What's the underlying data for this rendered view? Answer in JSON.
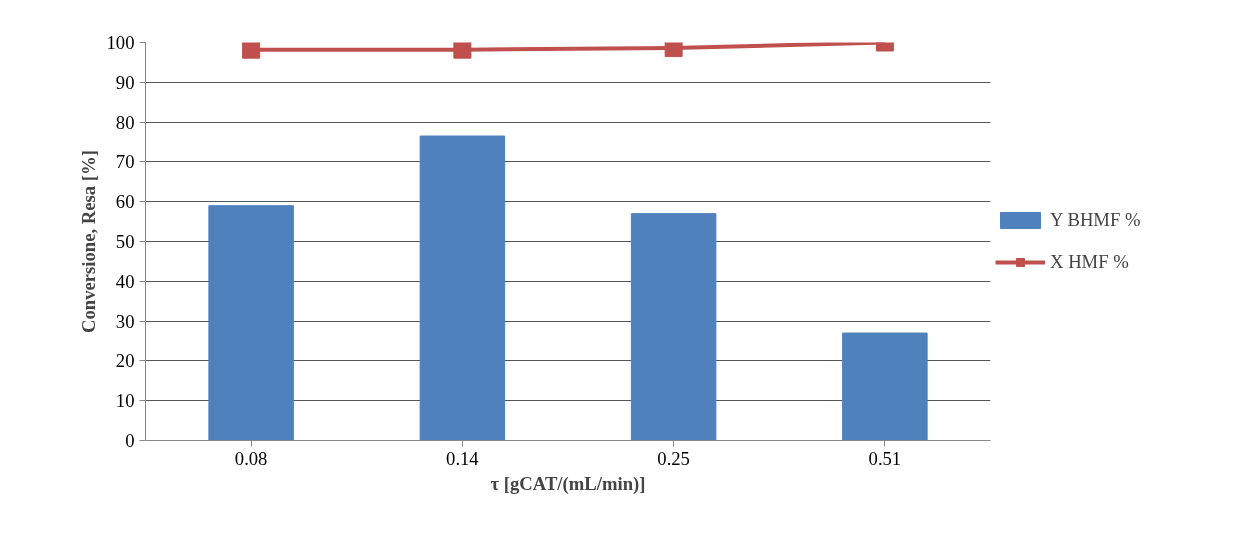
{
  "chart_data": {
    "type": "bar",
    "xlabel": "τ [gCAT/(mL/min)]",
    "ylabel": "Conversione, Resa [%]",
    "categories": [
      "0.08",
      "0.14",
      "0.25",
      "0.51"
    ],
    "series": [
      {
        "name": "Y BHMF %",
        "color": "#4f81bd",
        "values": [
          59,
          76.5,
          57,
          27
        ]
      },
      {
        "name": "X HMF %",
        "type": "line",
        "color": "#c0504d",
        "marker": "square",
        "values": [
          98.2,
          98.2,
          98.6,
          100
        ]
      }
    ],
    "ylim": [
      0,
      100
    ],
    "yticks": [
      0,
      10,
      20,
      30,
      40,
      50,
      60,
      70,
      80,
      90,
      100
    ],
    "grid": "y",
    "legend": "right"
  }
}
